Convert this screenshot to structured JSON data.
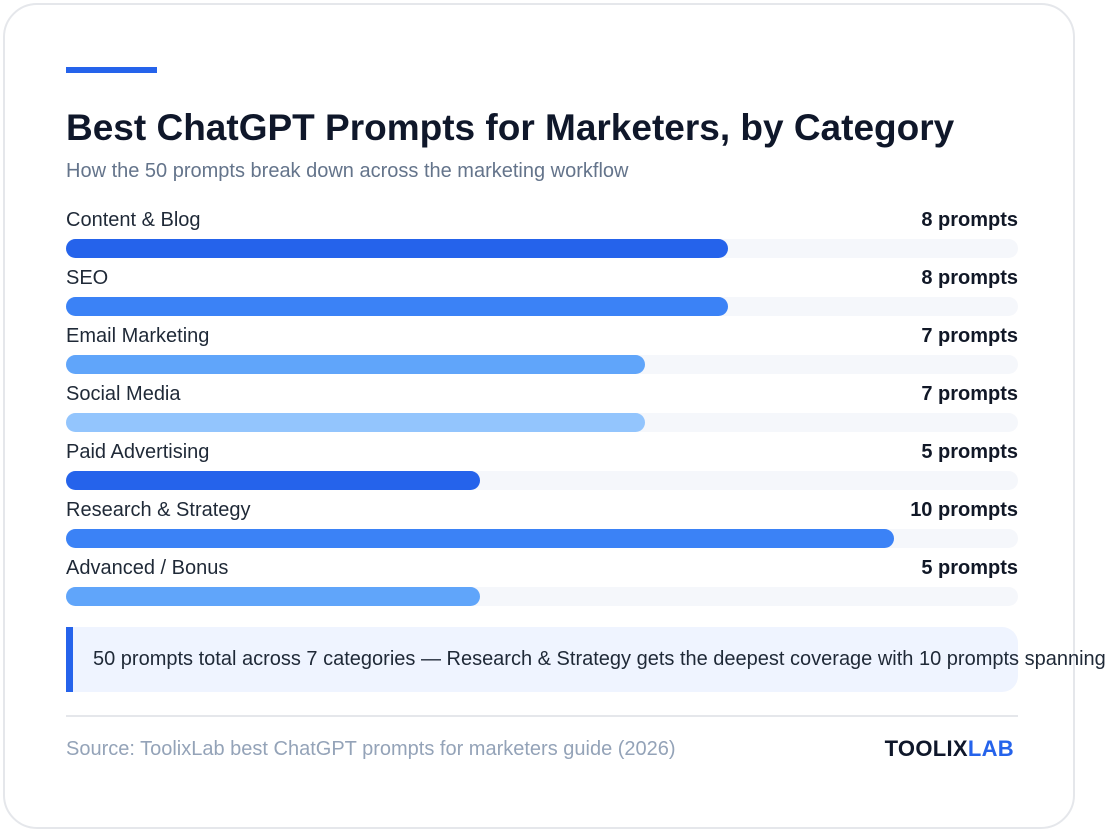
{
  "header": {
    "title": "Best ChatGPT Prompts for Marketers, by Category",
    "subtitle": "How the 50 prompts break down across the marketing workflow"
  },
  "colors": {
    "accent": "#2563eb",
    "track": "#f5f7fb"
  },
  "chart_data": {
    "type": "bar",
    "orientation": "horizontal",
    "title": "Best ChatGPT Prompts for Marketers, by Category",
    "subtitle": "How the 50 prompts break down across the marketing workflow",
    "xlim": [
      0,
      11.5
    ],
    "categories": [
      "Content & Blog",
      "SEO",
      "Email Marketing",
      "Social Media",
      "Paid Advertising",
      "Research & Strategy",
      "Advanced / Bonus"
    ],
    "values": [
      8,
      8,
      7,
      7,
      5,
      10,
      5
    ],
    "value_labels": [
      "8 prompts",
      "8 prompts",
      "7 prompts",
      "7 prompts",
      "5 prompts",
      "10 prompts",
      "5 prompts"
    ],
    "bar_colors": [
      "#2563eb",
      "#3b82f6",
      "#60a5fa",
      "#93c5fd",
      "#2563eb",
      "#3b82f6",
      "#60a5fa"
    ]
  },
  "callout": {
    "text": "50 prompts total across 7 categories — Research & Strategy gets the deepest coverage with 10 prompts spanning"
  },
  "footer": {
    "source": "Source: ToolixLab best ChatGPT prompts for marketers guide (2026)",
    "brand_part1": "TOOLIX",
    "brand_part2": "LAB"
  }
}
